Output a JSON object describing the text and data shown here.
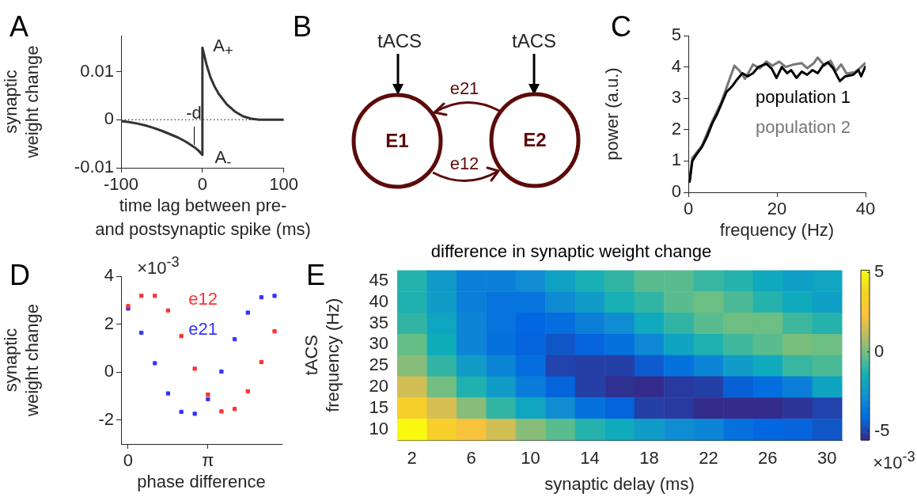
{
  "chart_data": [
    {
      "type": "line",
      "xlabel": "time lag between pre-\nand postsynaptic spike (ms)",
      "ylabel": "synaptic\nweight change",
      "color": "#333333",
      "x": [
        -100,
        -90,
        -80,
        -70,
        -60,
        -50,
        -40,
        -30,
        -20,
        -10,
        -5,
        0,
        0,
        5,
        10,
        15,
        20,
        30,
        40,
        50,
        60,
        70,
        80,
        100
      ],
      "values": [
        -0.0003,
        -0.0005,
        -0.0008,
        -0.0012,
        -0.0017,
        -0.0023,
        -0.003,
        -0.0037,
        -0.0046,
        -0.0057,
        -0.0064,
        -0.0073,
        0.015,
        0.0115,
        0.0088,
        0.0069,
        0.0054,
        0.0032,
        0.0017,
        0.0007,
        0.0002,
        0,
        0,
        0
      ],
      "xlim": [
        -100,
        100
      ],
      "xticks": [
        -100,
        0,
        100
      ],
      "ylim": [
        -0.01,
        0.0175
      ],
      "yticks": [
        -0.01,
        0,
        0.01
      ],
      "ref_lines": [
        {
          "axis": "y",
          "value": 0,
          "color": "#000000",
          "line_style": "dotted"
        }
      ],
      "annotations": [
        "A",
        "A$_{+}$",
        "A$_{-}$",
        "-d"
      ]
    },
    {
      "type": "other",
      "annotations": [
        "B",
        "tACS",
        "tACS",
        "e21",
        "e12",
        "E1",
        "E2"
      ]
    },
    {
      "type": "line",
      "xlabel": "frequency (Hz)",
      "ylabel": "power (a.u.)",
      "xlim": [
        0,
        40
      ],
      "xticks": [
        0,
        20,
        40
      ],
      "ylim": [
        0,
        5
      ],
      "yticks": [
        0,
        1,
        2,
        3,
        4,
        5
      ],
      "legend": "right",
      "series": [
        {
          "name": "population 1",
          "color": "#000000",
          "x": [
            0.3,
            0.9,
            1.8,
            3,
            4.2,
            5.4,
            6.5,
            7.4,
            8.6,
            9.8,
            11,
            12.2,
            13.4,
            14.6,
            15.8,
            17.6,
            18.8,
            19.9,
            21.1,
            22.3,
            23.2,
            24.4,
            25.6,
            26.8,
            28,
            29.2,
            30.4,
            31.5,
            32.7,
            34.2,
            35.4,
            37.2,
            38.4,
            39,
            39.9
          ],
          "values": [
            0.34,
            1.0,
            1.2,
            1.43,
            1.77,
            2.2,
            2.5,
            2.8,
            3.2,
            3.37,
            3.6,
            3.8,
            3.7,
            3.8,
            4.0,
            4.1,
            3.95,
            3.65,
            4.0,
            3.8,
            3.9,
            3.65,
            3.85,
            3.75,
            3.9,
            3.8,
            4.05,
            4.15,
            3.95,
            3.55,
            3.7,
            3.75,
            3.9,
            3.7,
            4.0
          ]
        },
        {
          "name": "population 2",
          "color": "#777777",
          "x": [
            0.3,
            0.9,
            3,
            5.4,
            7.4,
            8.9,
            10.4,
            11.6,
            12.8,
            14.6,
            16.1,
            17.6,
            19,
            20.5,
            22,
            23.8,
            25.6,
            26.8,
            28.3,
            29.2,
            30.7,
            32.1,
            33.3,
            34.5,
            35.7,
            37.5,
            38.7,
            39.9
          ],
          "values": [
            0.42,
            1.1,
            1.47,
            2.27,
            2.86,
            3.45,
            4.04,
            3.87,
            3.62,
            4.08,
            3.95,
            4.17,
            4.04,
            4.17,
            4.0,
            4.08,
            4.12,
            3.96,
            4.12,
            4.3,
            4.04,
            4.2,
            3.87,
            4.08,
            3.79,
            3.83,
            3.96,
            4.12
          ]
        }
      ],
      "annotations": [
        "C"
      ]
    },
    {
      "type": "scatter",
      "xlabel": "phase difference",
      "ylabel": "synaptic\nweight change",
      "marker": "square",
      "legend": "top",
      "x": [
        0,
        0.52,
        1.05,
        1.57,
        2.09,
        2.62,
        3.14,
        3.67,
        4.19,
        4.71,
        5.24,
        5.76
      ],
      "xlim": [
        -0.28,
        6.04
      ],
      "xticks": [
        0,
        {
          "value": 3.1416,
          "label": "π"
        }
      ],
      "ylim": [
        -3,
        4
      ],
      "yticks": [
        -2,
        0,
        2,
        4
      ],
      "series": [
        {
          "name": "e12",
          "color": "#ff3030",
          "values": [
            2.75,
            3.18,
            3.18,
            2.57,
            1.5,
            0.14,
            -0.94,
            -1.64,
            -1.54,
            -0.8,
            0.42,
            1.7
          ]
        },
        {
          "name": "e21",
          "color": "#3333ff",
          "values": [
            2.65,
            1.64,
            0.37,
            -0.89,
            -1.66,
            -1.74,
            -1.13,
            0.02,
            1.37,
            2.48,
            3.12,
            3.18
          ]
        }
      ],
      "annotations": [
        "D",
        "×10$^{-3}$"
      ]
    },
    {
      "type": "heatmap",
      "title": "difference in synaptic weight change",
      "xlabel": "synaptic delay (ms)",
      "ylabel": "tACS\nfrequency (Hz)",
      "x": [
        2,
        4,
        6,
        8,
        10,
        12,
        14,
        16,
        18,
        20,
        22,
        24,
        26,
        28,
        30
      ],
      "xlim": [
        1,
        31
      ],
      "xticks": [
        2,
        6,
        10,
        14,
        18,
        22,
        26,
        30
      ],
      "y_categories": [
        "45",
        "40",
        "35",
        "30",
        "25",
        "20",
        "15",
        "10"
      ],
      "cells": [
        [
          -1.2,
          -2.4,
          -3.4,
          -3.4,
          -2.9,
          -2.1,
          -1.4,
          -1.0,
          -0.4,
          -0.4,
          -0.9,
          -1.2,
          -1.8,
          -2.2,
          -1.9
        ],
        [
          -1.3,
          -2.3,
          -3.4,
          -3.8,
          -3.8,
          -3.0,
          -2.3,
          -1.4,
          -1.0,
          -0.4,
          -0.1,
          -0.6,
          -1.2,
          -1.7,
          -2.2
        ],
        [
          -1.0,
          -1.9,
          -3.2,
          -3.8,
          -4.2,
          -4.0,
          -3.4,
          -2.9,
          -1.7,
          -1.0,
          -0.4,
          -0.1,
          -0.1,
          -0.8,
          -1.2
        ],
        [
          -0.2,
          -1.6,
          -3.2,
          -3.9,
          -4.3,
          -4.6,
          -4.3,
          -3.9,
          -3.1,
          -2.0,
          -1.3,
          -0.8,
          -0.4,
          0.1,
          -0.1
        ],
        [
          0.3,
          -1.0,
          -2.3,
          -3.2,
          -4.0,
          -5.0,
          -5.1,
          -5.1,
          -4.5,
          -3.9,
          -3.2,
          -2.3,
          -1.7,
          -0.9,
          -0.6
        ],
        [
          1.5,
          0.0,
          -1.3,
          -2.3,
          -3.5,
          -4.3,
          -5.1,
          -5.4,
          -5.5,
          -5.2,
          -5.1,
          -4.4,
          -4.0,
          -3.4,
          -2.0
        ],
        [
          3.3,
          1.6,
          0.3,
          -1.0,
          -1.9,
          -2.9,
          -3.9,
          -4.3,
          -5.1,
          -5.2,
          -5.5,
          -5.5,
          -5.5,
          -5.3,
          -5.0
        ],
        [
          5.1,
          3.3,
          2.3,
          1.5,
          0.3,
          -0.4,
          -1.2,
          -1.7,
          -2.3,
          -2.9,
          -3.2,
          -3.9,
          -4.2,
          -4.3,
          -4.6
        ]
      ],
      "clim": [
        -5.55,
        5.15
      ],
      "cticks": [
        -5,
        0,
        5
      ],
      "annotations": [
        "E",
        "×10$^{-3}$"
      ]
    }
  ]
}
